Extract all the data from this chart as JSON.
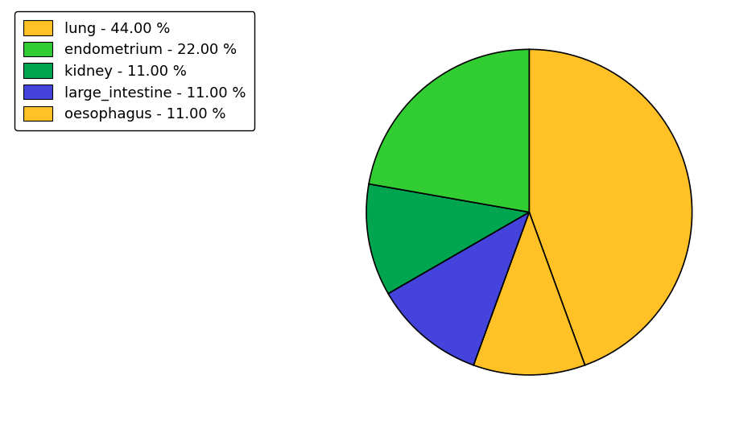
{
  "labels": [
    "lung",
    "oesophagus",
    "large_intestine",
    "kidney",
    "endometrium"
  ],
  "values": [
    44.0,
    11.0,
    11.0,
    11.0,
    22.0
  ],
  "colors": [
    "#FFC125",
    "#FFC125",
    "#4444DD",
    "#00A550",
    "#32CD32"
  ],
  "legend_labels": [
    "lung - 44.00 %",
    "endometrium - 22.00 %",
    "kidney - 11.00 %",
    "large_intestine - 11.00 %",
    "oesophagus - 11.00 %"
  ],
  "legend_colors": [
    "#FFC125",
    "#32CD32",
    "#00A550",
    "#4444DD",
    "#FFC125"
  ],
  "startangle": 90,
  "background_color": "#ffffff",
  "legend_fontsize": 13
}
